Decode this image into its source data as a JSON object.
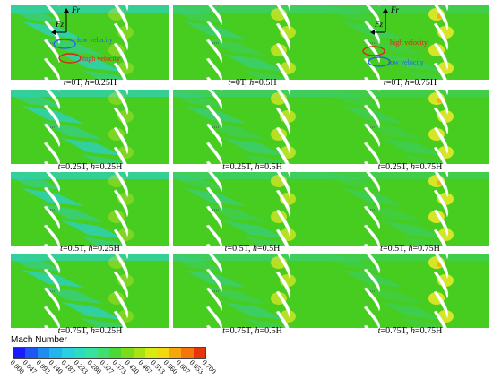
{
  "panels": [
    {
      "t": "0T",
      "h": "0.25H"
    },
    {
      "t": "0T",
      "h": "0.5H"
    },
    {
      "t": "0T",
      "h": "0.75H"
    },
    {
      "t": "0.25T",
      "h": "0.25H"
    },
    {
      "t": "0.25T",
      "h": "0.5H"
    },
    {
      "t": "0.25T",
      "h": "0.75H"
    },
    {
      "t": "0.5T",
      "h": "0.25H"
    },
    {
      "t": "0.5T",
      "h": "0.5H"
    },
    {
      "t": "0.5T",
      "h": "0.75H"
    },
    {
      "t": "0.75T",
      "h": "0.25H"
    },
    {
      "t": "0.75T",
      "h": "0.5H"
    },
    {
      "t": "0.75T",
      "h": "0.75H"
    }
  ],
  "annotations": {
    "low_velocity": "low velocity",
    "high_velocity": "high velocity",
    "axis_fz": "Fz",
    "axis_fr": "Fr"
  },
  "legend": {
    "title": "Mach Number",
    "ticks": [
      "0.000",
      "0.047",
      "0.093",
      "0.140",
      "0.187",
      "0.233",
      "0.280",
      "0.327",
      "0.373",
      "0.420",
      "0.467",
      "0.513",
      "0.560",
      "0.607",
      "0.653",
      "0.700"
    ],
    "colors": [
      "#1a1aff",
      "#1e56f5",
      "#1f8cf0",
      "#22b4ee",
      "#27cfe0",
      "#2bdcc4",
      "#35e39f",
      "#3fe070",
      "#4cd937",
      "#7cdc1a",
      "#a8e414",
      "#d6ec12",
      "#f2d80f",
      "#f7a60c",
      "#f57509",
      "#e8340a"
    ]
  },
  "colors": {
    "field": "#47cd1f",
    "low_region": "#2fd0b6",
    "high_region": "#e6e827",
    "blade": "#ffffff",
    "low_marker": "#2a63e0",
    "high_marker": "#e0241a"
  }
}
